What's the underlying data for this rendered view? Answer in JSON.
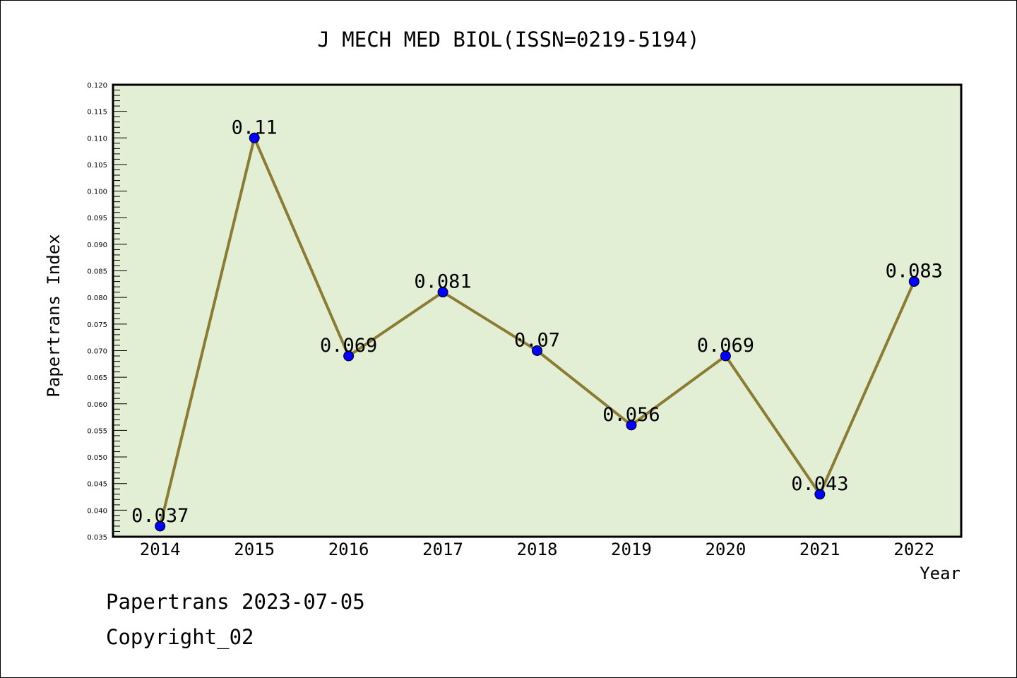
{
  "chart_data": {
    "type": "line",
    "title": "J MECH MED BIOL(ISSN=0219-5194)",
    "xlabel": "Year",
    "ylabel": "Papertrans Index",
    "categories": [
      "2014",
      "2015",
      "2016",
      "2017",
      "2018",
      "2019",
      "2020",
      "2021",
      "2022"
    ],
    "x": [
      2014,
      2015,
      2016,
      2017,
      2018,
      2019,
      2020,
      2021,
      2022
    ],
    "values": [
      0.037,
      0.11,
      0.069,
      0.081,
      0.07,
      0.056,
      0.069,
      0.043,
      0.083
    ],
    "data_labels": [
      "0.037",
      "0.11",
      "0.069",
      "0.081",
      "0.07",
      "0.056",
      "0.069",
      "0.043",
      "0.083"
    ],
    "xlim": [
      2013.5,
      2022.5
    ],
    "ylim": [
      0.035,
      0.12
    ],
    "yticks": [
      "0.035",
      "0.040",
      "0.045",
      "0.050",
      "0.055",
      "0.060",
      "0.065",
      "0.070",
      "0.075",
      "0.080",
      "0.085",
      "0.090",
      "0.095",
      "0.100",
      "0.105",
      "0.110",
      "0.115",
      "0.120"
    ],
    "grid": false,
    "colors": {
      "background": "#e2efd5",
      "line": "#8b7b33",
      "marker": "#0000ff"
    }
  },
  "footer": {
    "line1": "Papertrans 2023-07-05",
    "line2": "Copyright_02"
  }
}
